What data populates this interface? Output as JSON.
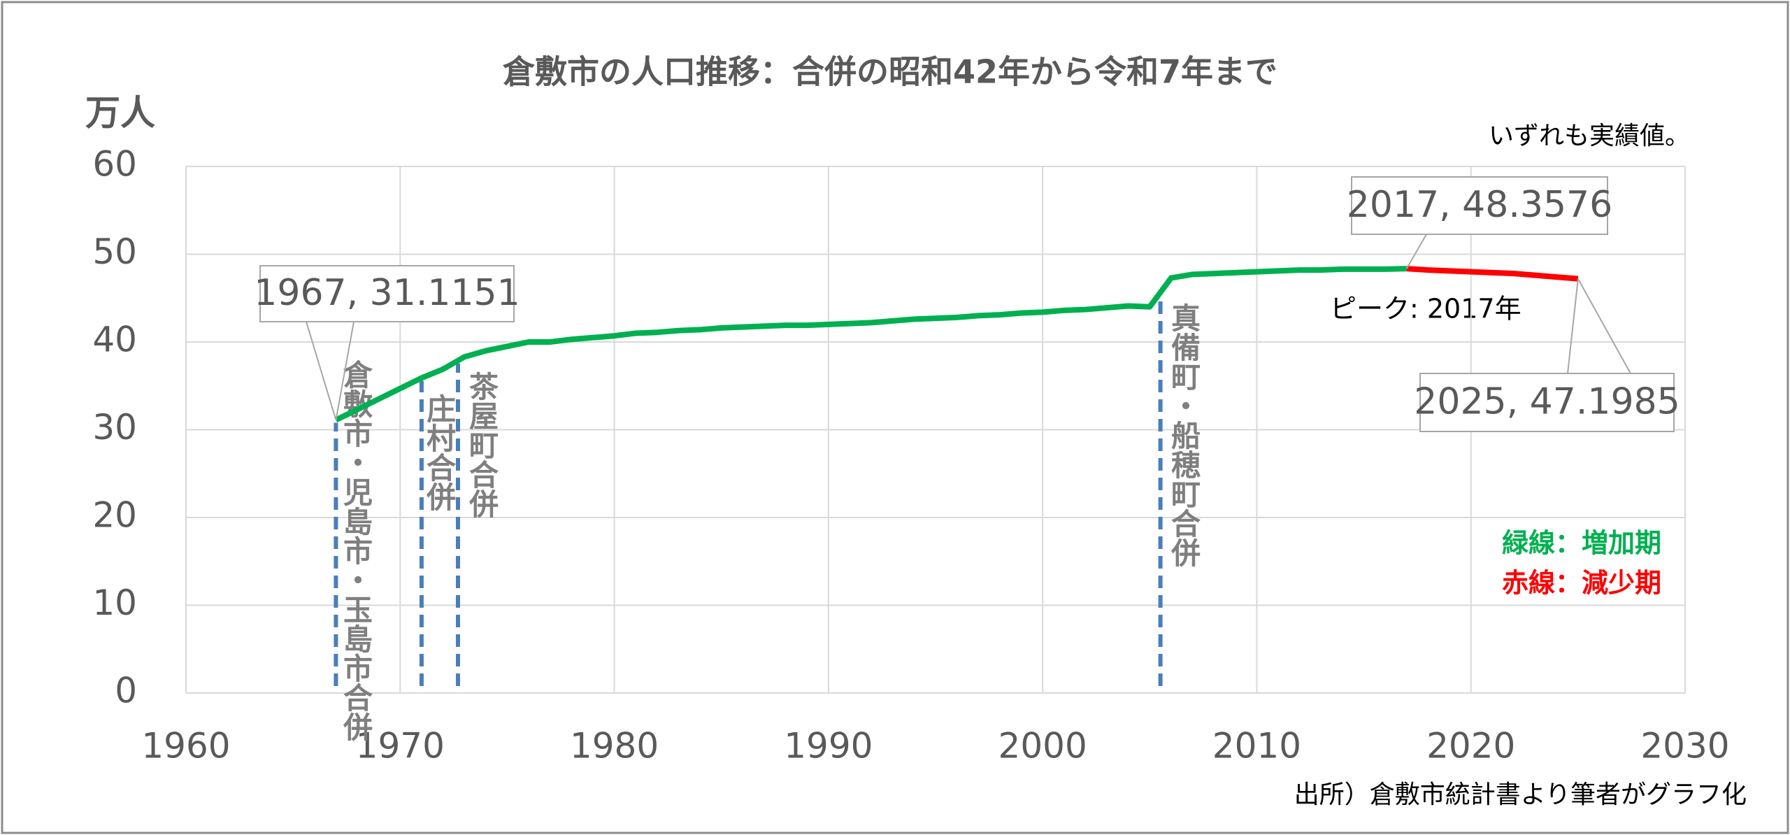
{
  "chart_data": {
    "type": "line",
    "title": "倉敷市の人口推移：合併の昭和42年から令和7年まで",
    "y_label": "万人",
    "note": "いずれも実績値。",
    "source": "出所）倉敷市統計書より筆者がグラフ化",
    "peak_label": "ピーク: 2017年",
    "series": [
      {
        "name": "緑線：増加期",
        "color": "#00b050",
        "x": [
          1967,
          1968,
          1969,
          1970,
          1971,
          1972,
          1973,
          1974,
          1975,
          1976,
          1977,
          1978,
          1979,
          1980,
          1981,
          1982,
          1983,
          1984,
          1985,
          1986,
          1987,
          1988,
          1989,
          1990,
          1991,
          1992,
          1993,
          1994,
          1995,
          1996,
          1997,
          1998,
          1999,
          2000,
          2001,
          2002,
          2003,
          2004,
          2005,
          2006,
          2007,
          2008,
          2009,
          2010,
          2011,
          2012,
          2013,
          2014,
          2015,
          2016,
          2017
        ],
        "values": [
          31.1151,
          32.3,
          33.5,
          34.7,
          35.9,
          36.9,
          38.3,
          39.0,
          39.5,
          40.0,
          40.0,
          40.3,
          40.5,
          40.7,
          41.0,
          41.1,
          41.3,
          41.4,
          41.6,
          41.7,
          41.8,
          41.9,
          41.9,
          42.0,
          42.1,
          42.2,
          42.4,
          42.6,
          42.7,
          42.8,
          43.0,
          43.1,
          43.3,
          43.4,
          43.6,
          43.7,
          43.9,
          44.1,
          44.0,
          47.3,
          47.7,
          47.8,
          47.9,
          48.0,
          48.1,
          48.2,
          48.2,
          48.3,
          48.3,
          48.3,
          48.3576
        ]
      },
      {
        "name": "赤線：減少期",
        "color": "#ff0000",
        "x": [
          2017,
          2018,
          2019,
          2020,
          2021,
          2022,
          2023,
          2024,
          2025
        ],
        "values": [
          48.3576,
          48.2,
          48.1,
          48.0,
          47.9,
          47.8,
          47.6,
          47.4,
          47.1985
        ]
      }
    ],
    "annotations": [
      "1967, 31.1151",
      "2017, 48.3576",
      "2025, 47.1985"
    ],
    "events": [
      {
        "x": 1967,
        "label": "倉敷市・児島市・玉島市合併"
      },
      {
        "x": 1971,
        "label": "庄村合併"
      },
      {
        "x": 1972.7,
        "label": "茶屋町合併"
      },
      {
        "x": 2005.5,
        "label": "真備町・船穂町合併"
      }
    ],
    "event_color": "#4a7ebb",
    "xlim": [
      1960,
      2030
    ],
    "xticks": [
      1960,
      1970,
      1980,
      1990,
      2000,
      2010,
      2020,
      2030
    ],
    "ylim": [
      0,
      60
    ],
    "yticks": [
      0,
      10,
      20,
      30,
      40,
      50,
      60
    ],
    "grid": true
  }
}
